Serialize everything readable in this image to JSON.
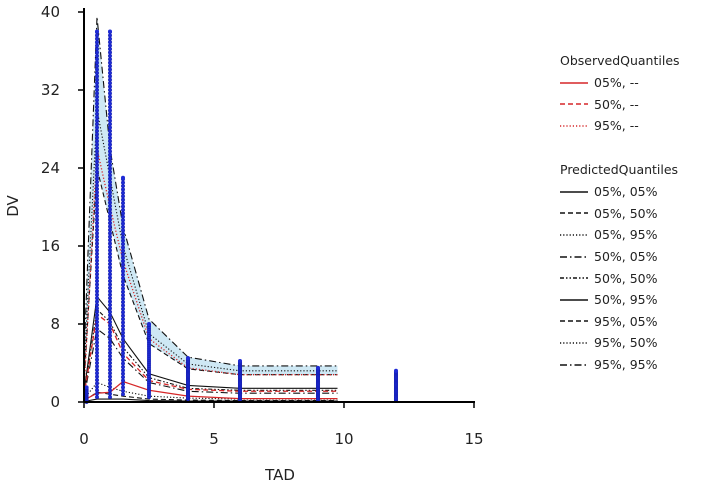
{
  "chart_data": {
    "type": "line",
    "title": "",
    "xlabel": "TAD",
    "ylabel": "DV",
    "xlim": [
      0,
      15
    ],
    "ylim": [
      0,
      40
    ],
    "x_ticks": [
      "0",
      "5",
      "10",
      "15"
    ],
    "y_ticks": [
      "0",
      "8",
      "16",
      "24",
      "32",
      "40"
    ],
    "x": [
      0,
      0.5,
      1,
      1.5,
      2.5,
      4,
      6,
      9,
      9.75
    ],
    "observed_quantiles": {
      "title": "ObservedQuantiles",
      "color": "#d62728",
      "series": [
        {
          "name": "05%, --",
          "dash": "solid",
          "values": [
            0.2,
            0.9,
            1.0,
            2.1,
            1.2,
            0.6,
            0.35,
            0.35,
            0.35
          ]
        },
        {
          "name": "50%, --",
          "dash": "dashed",
          "values": [
            0.6,
            9.0,
            8.0,
            5.0,
            2.2,
            1.3,
            1.1,
            1.1,
            1.1
          ]
        },
        {
          "name": "95%, --",
          "dash": "dotted",
          "values": [
            1.2,
            26.0,
            20.0,
            14.5,
            6.5,
            3.5,
            2.8,
            2.8,
            2.8
          ]
        }
      ]
    },
    "predicted_quantiles": {
      "title": "PredictedQuantiles",
      "color": "#111111",
      "series": [
        {
          "name": "05%, 05%",
          "dash": "solid",
          "values": [
            0.05,
            0.3,
            0.3,
            0.3,
            0.15,
            0.1,
            0.1,
            0.1,
            0.1
          ]
        },
        {
          "name": "05%, 50%",
          "dash": "dashed",
          "values": [
            0.1,
            1.0,
            0.8,
            0.6,
            0.3,
            0.2,
            0.15,
            0.15,
            0.15
          ]
        },
        {
          "name": "05%, 95%",
          "dash": "dotted",
          "values": [
            0.3,
            2.0,
            1.5,
            1.1,
            0.6,
            0.4,
            0.3,
            0.3,
            0.3
          ]
        },
        {
          "name": "50%, 05%",
          "dash": "dashdot",
          "values": [
            0.5,
            7.5,
            6.5,
            4.5,
            2.0,
            1.1,
            0.9,
            0.9,
            0.9
          ]
        },
        {
          "name": "50%, 50%",
          "dash": "dashdot2",
          "values": [
            0.7,
            9.5,
            8.2,
            5.6,
            2.5,
            1.4,
            1.2,
            1.2,
            1.2
          ]
        },
        {
          "name": "50%, 95%",
          "dash": "solid",
          "values": [
            1.0,
            10.8,
            9.2,
            6.5,
            2.9,
            1.7,
            1.4,
            1.4,
            1.4
          ]
        },
        {
          "name": "95%, 05%",
          "dash": "dashed",
          "values": [
            2.0,
            24.0,
            18.5,
            13.0,
            6.0,
            3.4,
            2.8,
            2.8,
            2.8
          ]
        },
        {
          "name": "95%, 50%",
          "dash": "dotted",
          "values": [
            3.0,
            30.0,
            23.0,
            16.0,
            7.0,
            3.9,
            3.2,
            3.2,
            3.2
          ]
        },
        {
          "name": "95%, 95%",
          "dash": "dashdot",
          "values": [
            4.5,
            39.5,
            26.0,
            18.0,
            8.5,
            4.6,
            3.7,
            3.7,
            3.7
          ]
        }
      ]
    },
    "shaded_band": {
      "color": "#c6e4f2",
      "upper": [
        4.5,
        39.5,
        26.0,
        18.0,
        8.5,
        4.6,
        3.7,
        3.7,
        3.7
      ],
      "lower": [
        2.0,
        24.0,
        18.5,
        13.0,
        6.0,
        3.4,
        2.8,
        2.8,
        2.8
      ]
    },
    "observations": {
      "color": "#1f2bd6",
      "groups": [
        {
          "x": 0.1,
          "min": 0.0,
          "max": 1.5
        },
        {
          "x": 0.5,
          "min": 0.5,
          "max": 38.0
        },
        {
          "x": 1.0,
          "min": 0.5,
          "max": 38.0
        },
        {
          "x": 1.5,
          "min": 0.8,
          "max": 23.0
        },
        {
          "x": 2.5,
          "min": 0.5,
          "max": 8.0
        },
        {
          "x": 4.0,
          "min": 0.3,
          "max": 4.5
        },
        {
          "x": 6.0,
          "min": 0.2,
          "max": 4.2
        },
        {
          "x": 9.0,
          "min": 0.1,
          "max": 3.5
        },
        {
          "x": 12.0,
          "min": 0.1,
          "max": 3.2
        }
      ]
    }
  }
}
